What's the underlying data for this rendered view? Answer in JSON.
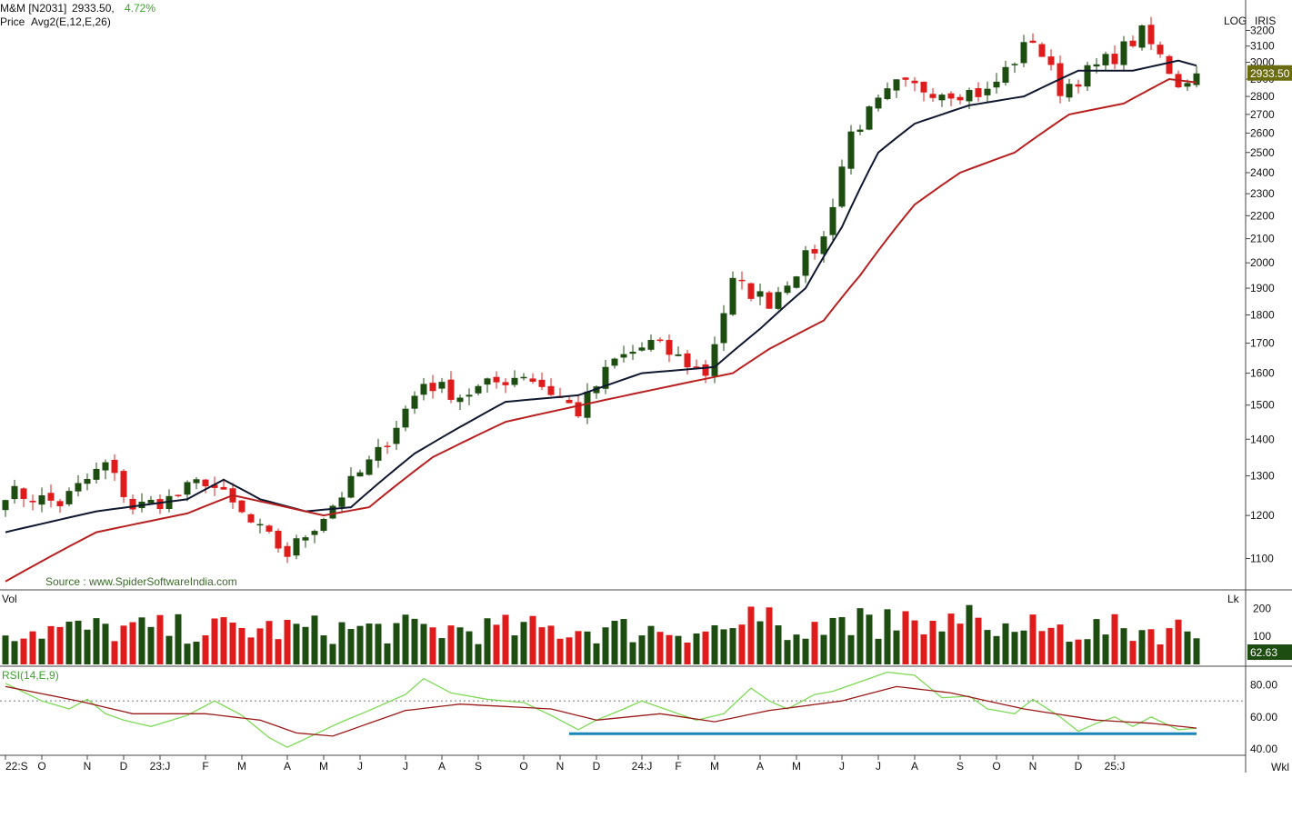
{
  "header": {
    "symbol": "M&M [N2031]",
    "price": "2933.50,",
    "change": "4.72%",
    "price_label": "Price",
    "avg_label": "Avg2(E,12,E,26)",
    "log_label": "LOG",
    "iris_label": "IRIS",
    "period_label": "Wkl"
  },
  "colors": {
    "up": "#1e4d12",
    "down": "#e01b1b",
    "ema_fast": "#101830",
    "ema_slow": "#b82020",
    "rsi": "#7ed957",
    "rsi_signal": "#9a1a1a",
    "support": "#1a86b8",
    "price_badge": "#6b6b10",
    "vol_badge": "#1e4d12"
  },
  "chart_data": [
    {
      "type": "candlestick",
      "title": "M&M [N2031] weekly",
      "scale": "log",
      "ylim": [
        1040,
        3280
      ],
      "yticks": [
        "1100",
        "1200",
        "1300",
        "1400",
        "1500",
        "1600",
        "1700",
        "1800",
        "1900",
        "2000",
        "2100",
        "2200",
        "2300",
        "2400",
        "2500",
        "2600",
        "2700",
        "2800",
        "2900",
        "3000",
        "3100",
        "3200"
      ],
      "last_price": "2933.50",
      "source_note": "Source : www.SpiderSoftwareIndia.com",
      "anchors": [
        [
          0,
          1260
        ],
        [
          6,
          1230
        ],
        [
          11,
          1330
        ],
        [
          14,
          1220
        ],
        [
          18,
          1240
        ],
        [
          22,
          1290
        ],
        [
          27,
          1180
        ],
        [
          31,
          1110
        ],
        [
          35,
          1200
        ],
        [
          41,
          1360
        ],
        [
          46,
          1570
        ],
        [
          50,
          1530
        ],
        [
          57,
          1600
        ],
        [
          63,
          1480
        ],
        [
          67,
          1640
        ],
        [
          71,
          1700
        ],
        [
          77,
          1600
        ],
        [
          80,
          1920
        ],
        [
          84,
          1850
        ],
        [
          90,
          2100
        ],
        [
          93,
          2600
        ],
        [
          98,
          2860
        ],
        [
          104,
          2830
        ],
        [
          108,
          2820
        ],
        [
          113,
          3150
        ],
        [
          116,
          2840
        ],
        [
          122,
          3040
        ],
        [
          125,
          3180
        ],
        [
          129,
          2880
        ],
        [
          131,
          2933
        ]
      ],
      "series": [
        {
          "name": "EMA 12",
          "anchors": [
            [
              0,
              1160
            ],
            [
              10,
              1210
            ],
            [
              20,
              1240
            ],
            [
              24,
              1290
            ],
            [
              28,
              1240
            ],
            [
              33,
              1210
            ],
            [
              38,
              1220
            ],
            [
              45,
              1360
            ],
            [
              55,
              1510
            ],
            [
              63,
              1530
            ],
            [
              70,
              1600
            ],
            [
              78,
              1620
            ],
            [
              83,
              1750
            ],
            [
              88,
              1900
            ],
            [
              92,
              2150
            ],
            [
              96,
              2500
            ],
            [
              100,
              2650
            ],
            [
              106,
              2750
            ],
            [
              112,
              2800
            ],
            [
              118,
              2950
            ],
            [
              124,
              2950
            ],
            [
              129,
              3010
            ],
            [
              131,
              2980
            ]
          ]
        },
        {
          "name": "EMA 26",
          "anchors": [
            [
              0,
              1050
            ],
            [
              10,
              1160
            ],
            [
              20,
              1205
            ],
            [
              25,
              1250
            ],
            [
              30,
              1225
            ],
            [
              35,
              1200
            ],
            [
              40,
              1220
            ],
            [
              47,
              1350
            ],
            [
              55,
              1450
            ],
            [
              65,
              1510
            ],
            [
              75,
              1570
            ],
            [
              80,
              1600
            ],
            [
              84,
              1680
            ],
            [
              90,
              1780
            ],
            [
              94,
              1950
            ],
            [
              100,
              2250
            ],
            [
              105,
              2400
            ],
            [
              111,
              2500
            ],
            [
              117,
              2700
            ],
            [
              123,
              2760
            ],
            [
              128,
              2900
            ],
            [
              131,
              2880
            ]
          ]
        }
      ]
    },
    {
      "type": "bar",
      "title": "Vol",
      "ylim": [
        0,
        260
      ],
      "yticks": [
        "100",
        "200"
      ],
      "corner_label": "Lk",
      "last_value": "62.63"
    },
    {
      "type": "line",
      "title": "RSI(14,E,9)",
      "ylim": [
        36,
        90
      ],
      "yticks": [
        "40.00",
        "60.00",
        "80.00"
      ],
      "reference_line": 70,
      "support_level": 49.5,
      "support_from_week": 62,
      "rsi_anchors": [
        [
          0,
          81
        ],
        [
          4,
          70
        ],
        [
          7,
          65
        ],
        [
          9,
          71
        ],
        [
          11,
          62
        ],
        [
          13,
          58
        ],
        [
          16,
          54
        ],
        [
          20,
          61
        ],
        [
          23,
          70
        ],
        [
          26,
          61
        ],
        [
          29,
          47
        ],
        [
          31,
          41
        ],
        [
          34,
          49
        ],
        [
          37,
          57
        ],
        [
          40,
          64
        ],
        [
          44,
          74
        ],
        [
          46,
          84
        ],
        [
          49,
          75
        ],
        [
          53,
          71
        ],
        [
          57,
          69
        ],
        [
          60,
          61
        ],
        [
          63,
          52
        ],
        [
          65,
          58
        ],
        [
          68,
          65
        ],
        [
          70,
          70
        ],
        [
          73,
          64
        ],
        [
          76,
          58
        ],
        [
          79,
          62
        ],
        [
          82,
          78
        ],
        [
          84,
          70
        ],
        [
          86,
          65
        ],
        [
          89,
          74
        ],
        [
          91,
          76
        ],
        [
          94,
          82
        ],
        [
          97,
          88
        ],
        [
          100,
          86
        ],
        [
          103,
          72
        ],
        [
          106,
          73
        ],
        [
          108,
          65
        ],
        [
          111,
          62
        ],
        [
          113,
          71
        ],
        [
          116,
          60
        ],
        [
          118,
          51
        ],
        [
          120,
          56
        ],
        [
          122,
          60
        ],
        [
          124,
          54
        ],
        [
          126,
          60
        ],
        [
          129,
          52
        ],
        [
          131,
          53
        ]
      ],
      "signal_anchors": [
        [
          0,
          79
        ],
        [
          8,
          70
        ],
        [
          14,
          62
        ],
        [
          22,
          62
        ],
        [
          28,
          58
        ],
        [
          32,
          50
        ],
        [
          36,
          48
        ],
        [
          44,
          64
        ],
        [
          50,
          68
        ],
        [
          60,
          65
        ],
        [
          65,
          58
        ],
        [
          72,
          62
        ],
        [
          78,
          57
        ],
        [
          84,
          64
        ],
        [
          92,
          70
        ],
        [
          98,
          79
        ],
        [
          104,
          75
        ],
        [
          112,
          65
        ],
        [
          120,
          58
        ],
        [
          126,
          56
        ],
        [
          131,
          53
        ]
      ]
    }
  ],
  "x_axis": {
    "labels": [
      "22:S",
      "O",
      "N",
      "D",
      "23:J",
      "F",
      "M",
      "A",
      "M",
      "J",
      "J",
      "A",
      "S",
      "O",
      "N",
      "D",
      "24:J",
      "F",
      "M",
      "A",
      "M",
      "J",
      "J",
      "A",
      "S",
      "O",
      "N",
      "D",
      "25:J"
    ],
    "label_weeks": [
      0,
      4,
      9,
      13,
      17,
      22,
      26,
      31,
      35,
      39,
      44,
      48,
      52,
      57,
      61,
      65,
      70,
      74,
      78,
      83,
      87,
      92,
      96,
      100,
      105,
      109,
      113,
      118,
      122
    ]
  }
}
